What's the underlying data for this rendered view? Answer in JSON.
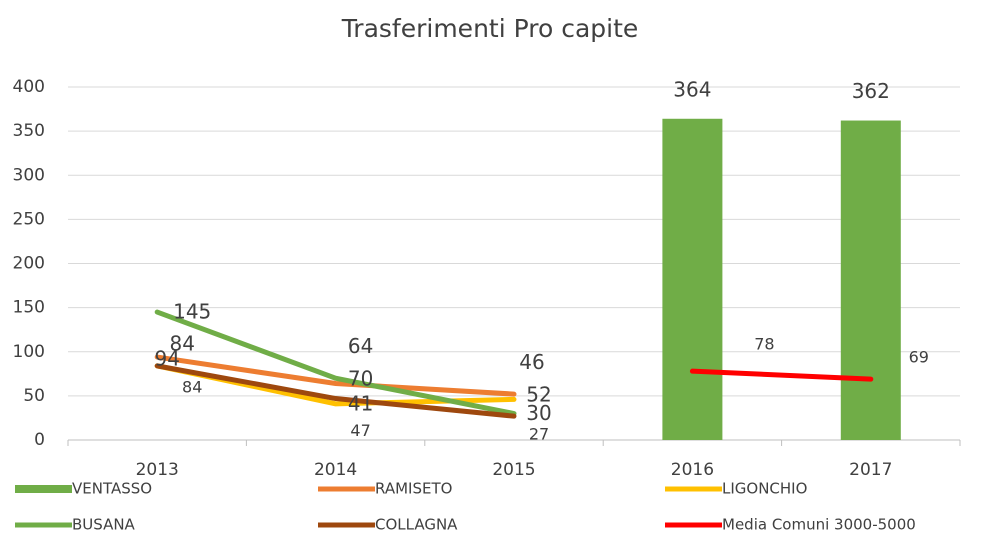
{
  "chart_data": {
    "type": "combo",
    "title": "Trasferimenti Pro capite",
    "categories": [
      "2013",
      "2014",
      "2015",
      "2016",
      "2017"
    ],
    "series": [
      {
        "name": "VENTASSO",
        "type": "bar",
        "color": "#70ad47",
        "values": [
          null,
          null,
          null,
          364,
          362
        ]
      },
      {
        "name": "RAMISETO",
        "type": "line",
        "color": "#ed7d31",
        "values": [
          94,
          64,
          52,
          null,
          null
        ]
      },
      {
        "name": "LIGONCHIO",
        "type": "line",
        "color": "#ffc000",
        "values": [
          84,
          41,
          46,
          null,
          null
        ]
      },
      {
        "name": "BUSANA",
        "type": "line",
        "color": "#70ad47",
        "values": [
          145,
          70,
          30,
          null,
          null
        ]
      },
      {
        "name": "COLLAGNA",
        "type": "line",
        "color": "#9e480e",
        "values": [
          84,
          47,
          27,
          null,
          null
        ]
      },
      {
        "name": "Media Comuni 3000-5000",
        "type": "line",
        "color": "#ff0000",
        "values": [
          null,
          null,
          null,
          78,
          69
        ]
      }
    ],
    "ylim": [
      0,
      400
    ],
    "yticks": [
      0,
      50,
      100,
      150,
      200,
      250,
      300,
      350,
      400
    ],
    "grid": true
  }
}
